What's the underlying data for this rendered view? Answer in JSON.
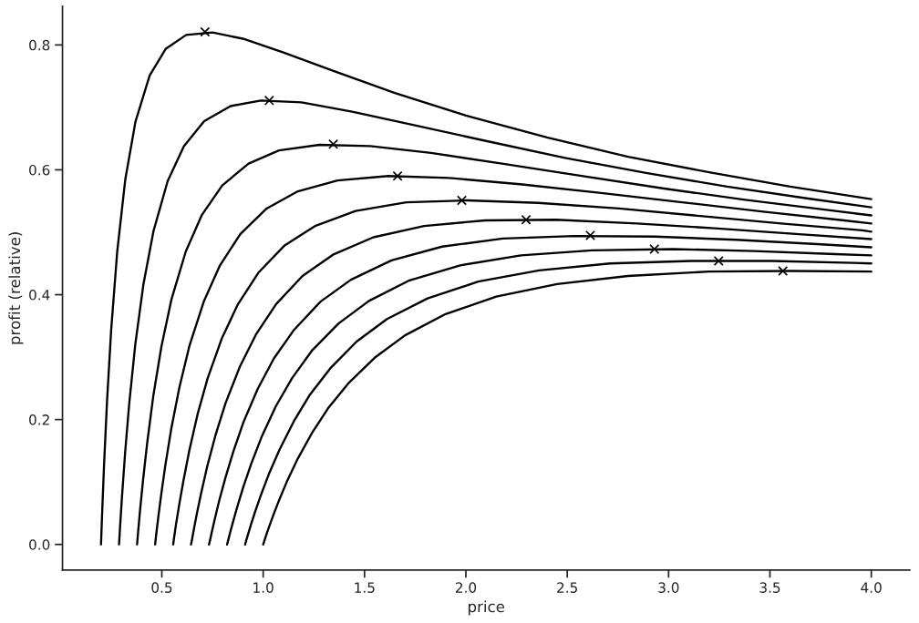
{
  "chart_data": {
    "type": "line",
    "xlabel": "price",
    "ylabel": "profit (relative)",
    "xlim": [
      0.01,
      4.19
    ],
    "xticks": [
      {
        "value": 0.5,
        "label": "0.5"
      },
      {
        "value": 1.0,
        "label": "1.0"
      },
      {
        "value": 1.5,
        "label": "1.5"
      },
      {
        "value": 2.0,
        "label": "2.0"
      },
      {
        "value": 2.5,
        "label": "2.5"
      },
      {
        "value": 3.0,
        "label": "3.0"
      },
      {
        "value": 3.5,
        "label": "3.5"
      },
      {
        "value": 4.0,
        "label": "4.0"
      }
    ],
    "ylim": [
      -0.041,
      0.862
    ],
    "yticks": [
      {
        "value": 0.0,
        "label": "0.0"
      },
      {
        "value": 0.2,
        "label": "0.2"
      },
      {
        "value": 0.4,
        "label": "0.4"
      },
      {
        "value": 0.6,
        "label": "0.6"
      },
      {
        "value": 0.8,
        "label": "0.8"
      }
    ],
    "grid": false,
    "legend": false,
    "series": [
      {
        "color": "#000000",
        "marker": "none",
        "x": [
          0.2,
          0.205,
          0.215,
          0.23,
          0.25,
          0.28,
          0.32,
          0.37,
          0.44,
          0.52,
          0.62,
          0.75,
          0.9,
          1.1,
          1.35,
          1.65,
          2.0,
          2.4,
          2.8,
          3.2,
          3.6,
          4.0
        ],
        "values": [
          0.0,
          0.045,
          0.127,
          0.231,
          0.343,
          0.469,
          0.585,
          0.677,
          0.751,
          0.794,
          0.816,
          0.82,
          0.81,
          0.788,
          0.758,
          0.723,
          0.687,
          0.652,
          0.621,
          0.596,
          0.573,
          0.553
        ]
      },
      {
        "color": "#000000",
        "marker": "none",
        "x": [
          0.289,
          0.294,
          0.304,
          0.319,
          0.339,
          0.369,
          0.409,
          0.459,
          0.529,
          0.609,
          0.709,
          0.839,
          0.989,
          1.189,
          1.439,
          1.739,
          2.089,
          2.489,
          2.889,
          3.289,
          3.689,
          4.0
        ],
        "values": [
          0.0,
          0.028,
          0.079,
          0.147,
          0.225,
          0.32,
          0.416,
          0.502,
          0.582,
          0.638,
          0.678,
          0.702,
          0.711,
          0.708,
          0.693,
          0.672,
          0.647,
          0.619,
          0.595,
          0.573,
          0.554,
          0.54
        ]
      },
      {
        "color": "#000000",
        "marker": "none",
        "x": [
          0.378,
          0.383,
          0.393,
          0.408,
          0.428,
          0.458,
          0.498,
          0.548,
          0.618,
          0.698,
          0.798,
          0.928,
          1.078,
          1.278,
          1.528,
          1.828,
          2.178,
          2.578,
          2.978,
          3.378,
          3.778,
          4.0
        ],
        "values": [
          0.0,
          0.02,
          0.056,
          0.105,
          0.163,
          0.238,
          0.317,
          0.393,
          0.469,
          0.528,
          0.575,
          0.61,
          0.631,
          0.64,
          0.638,
          0.627,
          0.61,
          0.59,
          0.57,
          0.552,
          0.536,
          0.527
        ]
      },
      {
        "color": "#000000",
        "marker": "none",
        "x": [
          0.467,
          0.472,
          0.482,
          0.497,
          0.517,
          0.547,
          0.587,
          0.637,
          0.707,
          0.787,
          0.887,
          1.017,
          1.167,
          1.367,
          1.617,
          1.917,
          2.267,
          2.667,
          3.067,
          3.467,
          3.867,
          4.0
        ],
        "values": [
          0.0,
          0.015,
          0.042,
          0.08,
          0.126,
          0.186,
          0.252,
          0.319,
          0.389,
          0.447,
          0.497,
          0.538,
          0.565,
          0.583,
          0.59,
          0.587,
          0.577,
          0.563,
          0.548,
          0.533,
          0.519,
          0.514
        ]
      },
      {
        "color": "#000000",
        "marker": "none",
        "x": [
          0.556,
          0.561,
          0.571,
          0.586,
          0.606,
          0.636,
          0.676,
          0.726,
          0.796,
          0.876,
          0.976,
          1.106,
          1.256,
          1.456,
          1.706,
          2.006,
          2.356,
          2.756,
          3.156,
          3.556,
          3.956,
          4.0
        ],
        "values": [
          0.0,
          0.012,
          0.034,
          0.064,
          0.101,
          0.151,
          0.208,
          0.266,
          0.33,
          0.385,
          0.435,
          0.479,
          0.51,
          0.534,
          0.548,
          0.551,
          0.547,
          0.538,
          0.526,
          0.514,
          0.503,
          0.501
        ]
      },
      {
        "color": "#000000",
        "marker": "none",
        "x": [
          0.644,
          0.649,
          0.659,
          0.674,
          0.694,
          0.724,
          0.764,
          0.814,
          0.884,
          0.964,
          1.064,
          1.194,
          1.344,
          1.544,
          1.794,
          2.094,
          2.444,
          2.844,
          3.244,
          3.644,
          4.0
        ],
        "values": [
          0.0,
          0.008,
          0.026,
          0.051,
          0.082,
          0.125,
          0.174,
          0.226,
          0.284,
          0.336,
          0.385,
          0.43,
          0.464,
          0.492,
          0.51,
          0.519,
          0.52,
          0.514,
          0.506,
          0.497,
          0.489
        ]
      },
      {
        "color": "#000000",
        "marker": "none",
        "x": [
          0.733,
          0.738,
          0.748,
          0.763,
          0.783,
          0.813,
          0.853,
          0.903,
          0.973,
          1.053,
          1.153,
          1.283,
          1.433,
          1.633,
          1.883,
          2.183,
          2.533,
          2.933,
          3.333,
          3.733,
          4.0
        ],
        "values": [
          0.0,
          0.007,
          0.022,
          0.043,
          0.07,
          0.106,
          0.149,
          0.196,
          0.249,
          0.298,
          0.344,
          0.389,
          0.424,
          0.455,
          0.477,
          0.49,
          0.494,
          0.493,
          0.488,
          0.481,
          0.476
        ]
      },
      {
        "color": "#000000",
        "marker": "none",
        "x": [
          0.822,
          0.827,
          0.837,
          0.852,
          0.872,
          0.902,
          0.942,
          0.992,
          1.062,
          1.142,
          1.242,
          1.372,
          1.522,
          1.722,
          1.972,
          2.272,
          2.622,
          3.022,
          3.422,
          3.822,
          4.0
        ],
        "values": [
          0.0,
          0.006,
          0.019,
          0.037,
          0.06,
          0.092,
          0.13,
          0.172,
          0.221,
          0.266,
          0.311,
          0.354,
          0.39,
          0.423,
          0.447,
          0.463,
          0.471,
          0.473,
          0.47,
          0.465,
          0.463
        ]
      },
      {
        "color": "#000000",
        "marker": "none",
        "x": [
          0.911,
          0.916,
          0.926,
          0.941,
          0.961,
          0.991,
          1.031,
          1.081,
          1.151,
          1.231,
          1.331,
          1.461,
          1.611,
          1.811,
          2.061,
          2.361,
          2.711,
          3.111,
          3.511,
          3.911,
          4.0
        ],
        "values": [
          0.0,
          0.006,
          0.017,
          0.033,
          0.053,
          0.081,
          0.115,
          0.152,
          0.197,
          0.24,
          0.282,
          0.325,
          0.361,
          0.394,
          0.421,
          0.439,
          0.45,
          0.454,
          0.454,
          0.451,
          0.45
        ]
      },
      {
        "color": "#000000",
        "marker": "none",
        "x": [
          1.0,
          1.005,
          1.015,
          1.03,
          1.05,
          1.08,
          1.12,
          1.17,
          1.24,
          1.32,
          1.42,
          1.55,
          1.7,
          1.9,
          2.15,
          2.45,
          2.8,
          3.2,
          3.6,
          4.0
        ],
        "values": [
          0.0,
          0.005,
          0.015,
          0.029,
          0.047,
          0.072,
          0.103,
          0.137,
          0.178,
          0.218,
          0.258,
          0.299,
          0.335,
          0.369,
          0.397,
          0.417,
          0.43,
          0.437,
          0.438,
          0.437
        ]
      },
      {
        "type": "scatter",
        "color": "#000000",
        "marker": "cross",
        "x": [
          0.713,
          1.03,
          1.346,
          1.663,
          1.98,
          2.297,
          2.614,
          2.93,
          3.247,
          3.564
        ],
        "values": [
          0.821,
          0.711,
          0.641,
          0.59,
          0.551,
          0.52,
          0.495,
          0.473,
          0.454,
          0.438
        ]
      }
    ]
  }
}
